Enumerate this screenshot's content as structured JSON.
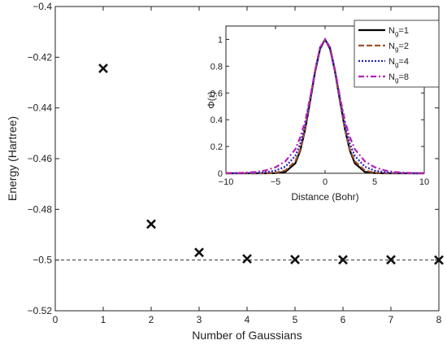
{
  "chart_data": [
    {
      "type": "scatter",
      "xlabel": "Number of Gaussians",
      "ylabel": "Energy (Hartree)",
      "xlim": [
        0,
        8
      ],
      "ylim": [
        -0.52,
        -0.4
      ],
      "xticks": [
        "0",
        "1",
        "2",
        "3",
        "4",
        "5",
        "6",
        "7",
        "8"
      ],
      "yticks": [
        "−0.52",
        "−0.5",
        "−0.48",
        "−0.46",
        "−0.44",
        "−0.42",
        "−0.4"
      ],
      "x": [
        1,
        2,
        3,
        4,
        5,
        6,
        7,
        8
      ],
      "y": [
        -0.4244,
        -0.4858,
        -0.497,
        -0.4995,
        -0.4998,
        -0.4999,
        -0.4999,
        -0.5
      ],
      "marker": "x",
      "marker_color": "#111111",
      "reference_line": {
        "y": -0.5,
        "style": "dashed",
        "color": "#333333"
      },
      "grid": false
    },
    {
      "type": "line",
      "xlabel": "Distance (Bohr)",
      "ylabel": "Φ(r)",
      "xlim": [
        -10,
        10
      ],
      "ylim": [
        0,
        1.1
      ],
      "xticks": [
        "−10",
        "−5",
        "0",
        "5",
        "10"
      ],
      "yticks": [
        "0",
        "0.2",
        "0.4",
        "0.6",
        "0.8",
        "1"
      ],
      "x": [
        -10,
        -9,
        -8,
        -7,
        -6,
        -5,
        -4,
        -3,
        -2.5,
        -2,
        -1.5,
        -1,
        -0.5,
        0,
        0.5,
        1,
        1.5,
        2,
        2.5,
        3,
        4,
        5,
        6,
        7,
        8,
        9,
        10
      ],
      "legend_position": "top-right",
      "series": [
        {
          "name": "N",
          "subscript": "g",
          "suffix": "=1",
          "color": "#000000",
          "dash": "solid",
          "values": [
            0,
            0,
            0,
            0,
            0,
            0.001,
            0.011,
            0.075,
            0.17,
            0.33,
            0.54,
            0.76,
            0.93,
            1,
            0.93,
            0.76,
            0.54,
            0.33,
            0.17,
            0.075,
            0.011,
            0.001,
            0,
            0,
            0,
            0,
            0
          ]
        },
        {
          "name": "N",
          "subscript": "g",
          "suffix": "=2",
          "color": "#a0522d",
          "dash": "dashed",
          "values": [
            0,
            0,
            0,
            0,
            0.001,
            0.004,
            0.022,
            0.09,
            0.18,
            0.34,
            0.55,
            0.77,
            0.94,
            1,
            0.94,
            0.77,
            0.55,
            0.34,
            0.18,
            0.09,
            0.022,
            0.004,
            0.001,
            0,
            0,
            0,
            0
          ]
        },
        {
          "name": "N",
          "subscript": "g",
          "suffix": "=4",
          "color": "#2222bb",
          "dash": "dotted",
          "values": [
            0,
            0,
            0.001,
            0.003,
            0.008,
            0.02,
            0.05,
            0.13,
            0.22,
            0.36,
            0.56,
            0.77,
            0.94,
            1,
            0.94,
            0.77,
            0.56,
            0.36,
            0.22,
            0.13,
            0.05,
            0.02,
            0.008,
            0.003,
            0.001,
            0,
            0
          ]
        },
        {
          "name": "N",
          "subscript": "g",
          "suffix": "=8",
          "color": "#b422b4",
          "dash": "dashdot",
          "values": [
            0.001,
            0.002,
            0.004,
            0.01,
            0.022,
            0.045,
            0.09,
            0.18,
            0.27,
            0.39,
            0.57,
            0.77,
            0.94,
            1,
            0.94,
            0.77,
            0.57,
            0.39,
            0.27,
            0.18,
            0.09,
            0.045,
            0.022,
            0.01,
            0.004,
            0.002,
            0.001
          ]
        }
      ]
    }
  ]
}
